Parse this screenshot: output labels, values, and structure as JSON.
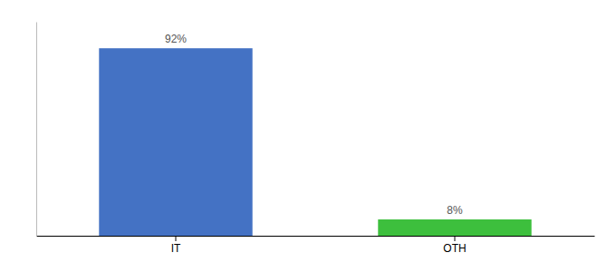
{
  "chart_data": {
    "type": "bar",
    "categories": [
      "IT",
      "OTH"
    ],
    "values": [
      92,
      8
    ],
    "value_labels": [
      "92%",
      "8%"
    ],
    "colors": [
      "#4472c4",
      "#3dbf3d"
    ],
    "ylim": [
      0,
      105
    ],
    "data_labels": true,
    "tick_labels": "x",
    "grid": false
  }
}
